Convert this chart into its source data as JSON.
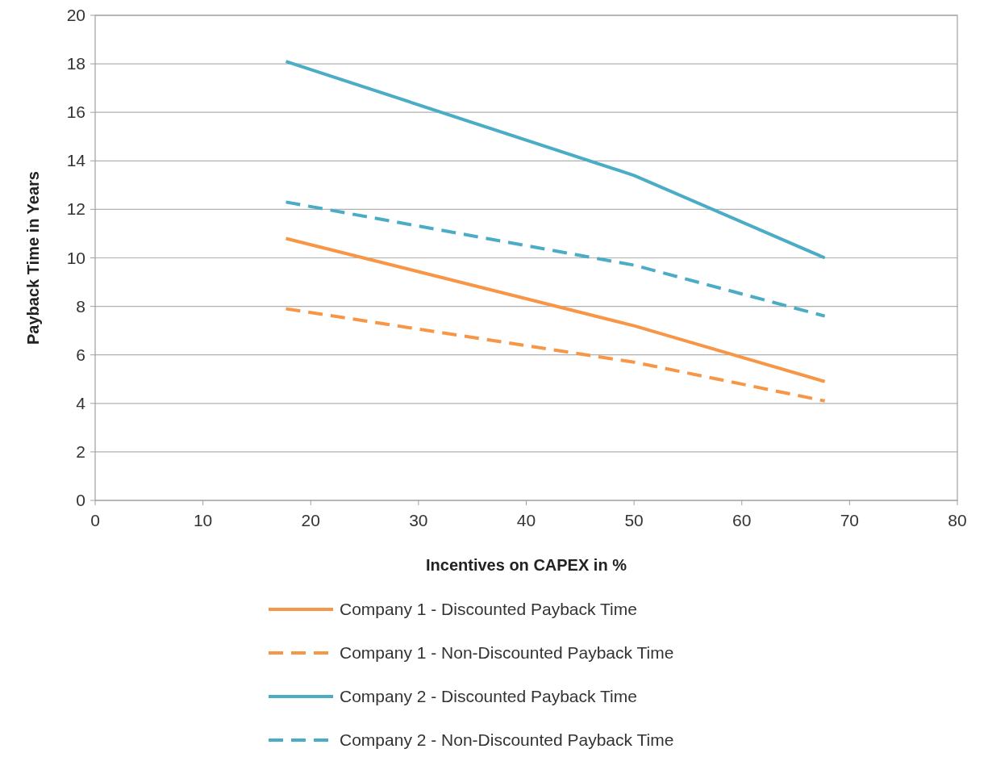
{
  "chart_data": {
    "type": "line",
    "xlabel": "Incentives on CAPEX in %",
    "ylabel": "Payback Time in Years",
    "x": [
      17.7,
      50,
      67.7
    ],
    "series": [
      {
        "name": "Company 1 - Discounted Payback Time",
        "color": "#f79646",
        "values": [
          10.8,
          7.2,
          4.9
        ],
        "line_style": "solid"
      },
      {
        "name": "Company 1 - Non-Discounted Payback Time",
        "color": "#f79646",
        "values": [
          7.9,
          5.7,
          4.1
        ],
        "line_style": "dashed"
      },
      {
        "name": "Company 2 - Discounted Payback Time",
        "color": "#4bacc6",
        "values": [
          18.1,
          13.4,
          10.0
        ],
        "line_style": "solid"
      },
      {
        "name": "Company 2 - Non-Discounted Payback Time",
        "color": "#4bacc6",
        "values": [
          12.3,
          9.7,
          7.6
        ],
        "line_style": "dashed"
      }
    ],
    "xlim": [
      0,
      80
    ],
    "xticks": [
      0,
      10,
      20,
      30,
      40,
      50,
      60,
      70,
      80
    ],
    "ylim": [
      0,
      20
    ],
    "yticks": [
      0,
      2,
      4,
      6,
      8,
      10,
      12,
      14,
      16,
      18,
      20
    ],
    "grid": "y",
    "legend": "bottom",
    "marker": "none"
  }
}
